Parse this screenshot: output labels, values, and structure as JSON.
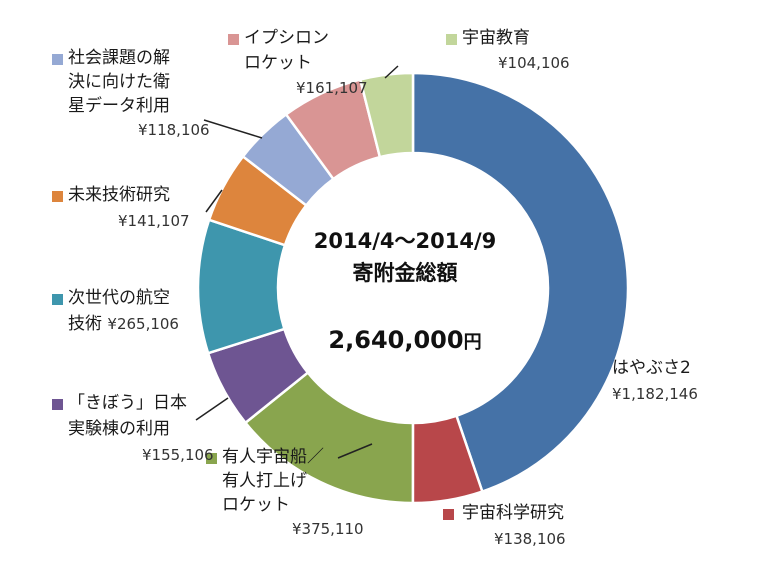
{
  "chart_data": {
    "type": "pie",
    "center_text": {
      "period": "2014/4～2014/9",
      "caption": "寄附金総額",
      "amount": "2,640,000",
      "unit": "円"
    },
    "total": 2640000,
    "slices": [
      {
        "key": "hayabusa2",
        "label_lines": [
          "はやぶさ2"
        ],
        "value": 1182146,
        "value_label": "¥1,182,146",
        "color": "#4572a7"
      },
      {
        "key": "uchu-kagaku",
        "label_lines": [
          "宇宙科学研究"
        ],
        "value": 138106,
        "value_label": "¥138,106",
        "color": "#b8474a"
      },
      {
        "key": "yujin",
        "label_lines": [
          "有人宇宙船／",
          "有人打上げ",
          "ロケット"
        ],
        "value": 375110,
        "value_label": "¥375,110",
        "color": "#89a54e"
      },
      {
        "key": "kibo",
        "label_lines": [
          "「きぼう」日本",
          "実験棟の利用"
        ],
        "value": 155106,
        "value_label": "¥155,106",
        "color": "#6e5592"
      },
      {
        "key": "jisedai",
        "label_lines": [
          "次世代の航空",
          "技術"
        ],
        "value": 265106,
        "value_label": "¥265,106",
        "color": "#3e96ad"
      },
      {
        "key": "mirai",
        "label_lines": [
          "未来技術研究"
        ],
        "value": 141107,
        "value_label": "¥141,107",
        "color": "#dd853d"
      },
      {
        "key": "shakai",
        "label_lines": [
          "社会課題の解",
          "決に向けた衛",
          "星データ利用"
        ],
        "value": 118106,
        "value_label": "¥118,106",
        "color": "#95a9d4"
      },
      {
        "key": "epsilon",
        "label_lines": [
          "イプシロン",
          "ロケット"
        ],
        "value": 161107,
        "value_label": "¥161,107",
        "color": "#d99594"
      },
      {
        "key": "kyoiku",
        "label_lines": [
          "宇宙教育"
        ],
        "value": 104106,
        "value_label": "¥104,106",
        "color": "#c2d69b"
      }
    ]
  }
}
